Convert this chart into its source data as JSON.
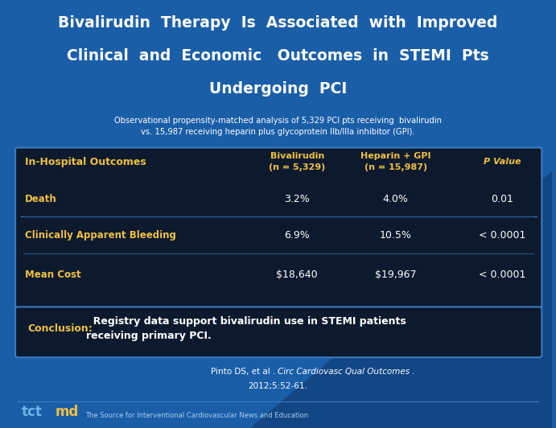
{
  "title_line1": "Bivalirudin  Therapy  Is  Associated  with  Improved",
  "title_line2": "Clinical  and  Economic   Outcomes  in  STEMI  Pts",
  "title_line3": "Undergoing  PCI",
  "subtitle": "Observational propensity-matched analysis of 5,329 PCI pts receiving  bivalirudin\nvs. 15,987 receiving heparin plus glycoprotein IIb/IIIa inhibitor (GPI).",
  "bg_color": "#1a5ea8",
  "table_bg": "#0d1a2e",
  "header_row_label": "In-Hospital Outcomes",
  "header_col1": "Bivalirudin\n(n = 5,329)",
  "header_col2": "Heparin + GPI\n(n = 15,987)",
  "header_col3": "P Value",
  "rows": [
    {
      "label": "Death",
      "col1": "3.2%",
      "col2": "4.0%",
      "col3": "0.01"
    },
    {
      "label": "Clinically Apparent Bleeding",
      "col1": "6.9%",
      "col2": "10.5%",
      "col3": "< 0.0001"
    },
    {
      "label": "Mean Cost",
      "col1": "$18,640",
      "col2": "$19,967",
      "col3": "< 0.0001"
    }
  ],
  "conclusion_label": "Conclusion:",
  "conclusion_text": "  Registry data support bivalirudin use in STEMI patients\nreceiving primary PCI.",
  "citation_line1_normal": "Pinto DS, et al . ",
  "citation_line1_italic": "Circ Cardiovasc Qual Outcomes .",
  "citation_line2": "2012;5:52-61.",
  "footer_text": "The Source for Interventional Cardiovascular News and Education",
  "title_color": "#ffffff",
  "subtitle_color": "#ffffff",
  "header_label_color": "#f0c040",
  "header_col_color": "#f0c040",
  "row_label_color": "#f0c040",
  "row_value_color": "#ffffff",
  "conclusion_label_color": "#f0c040",
  "conclusion_text_color": "#ffffff",
  "citation_color": "#ffffff",
  "footer_color": "#aaccee",
  "border_color": "#3a7abf",
  "sep_color": "#2a5a8f",
  "tct_color1": "#6ab4e8",
  "tct_color2": "#f0c040"
}
